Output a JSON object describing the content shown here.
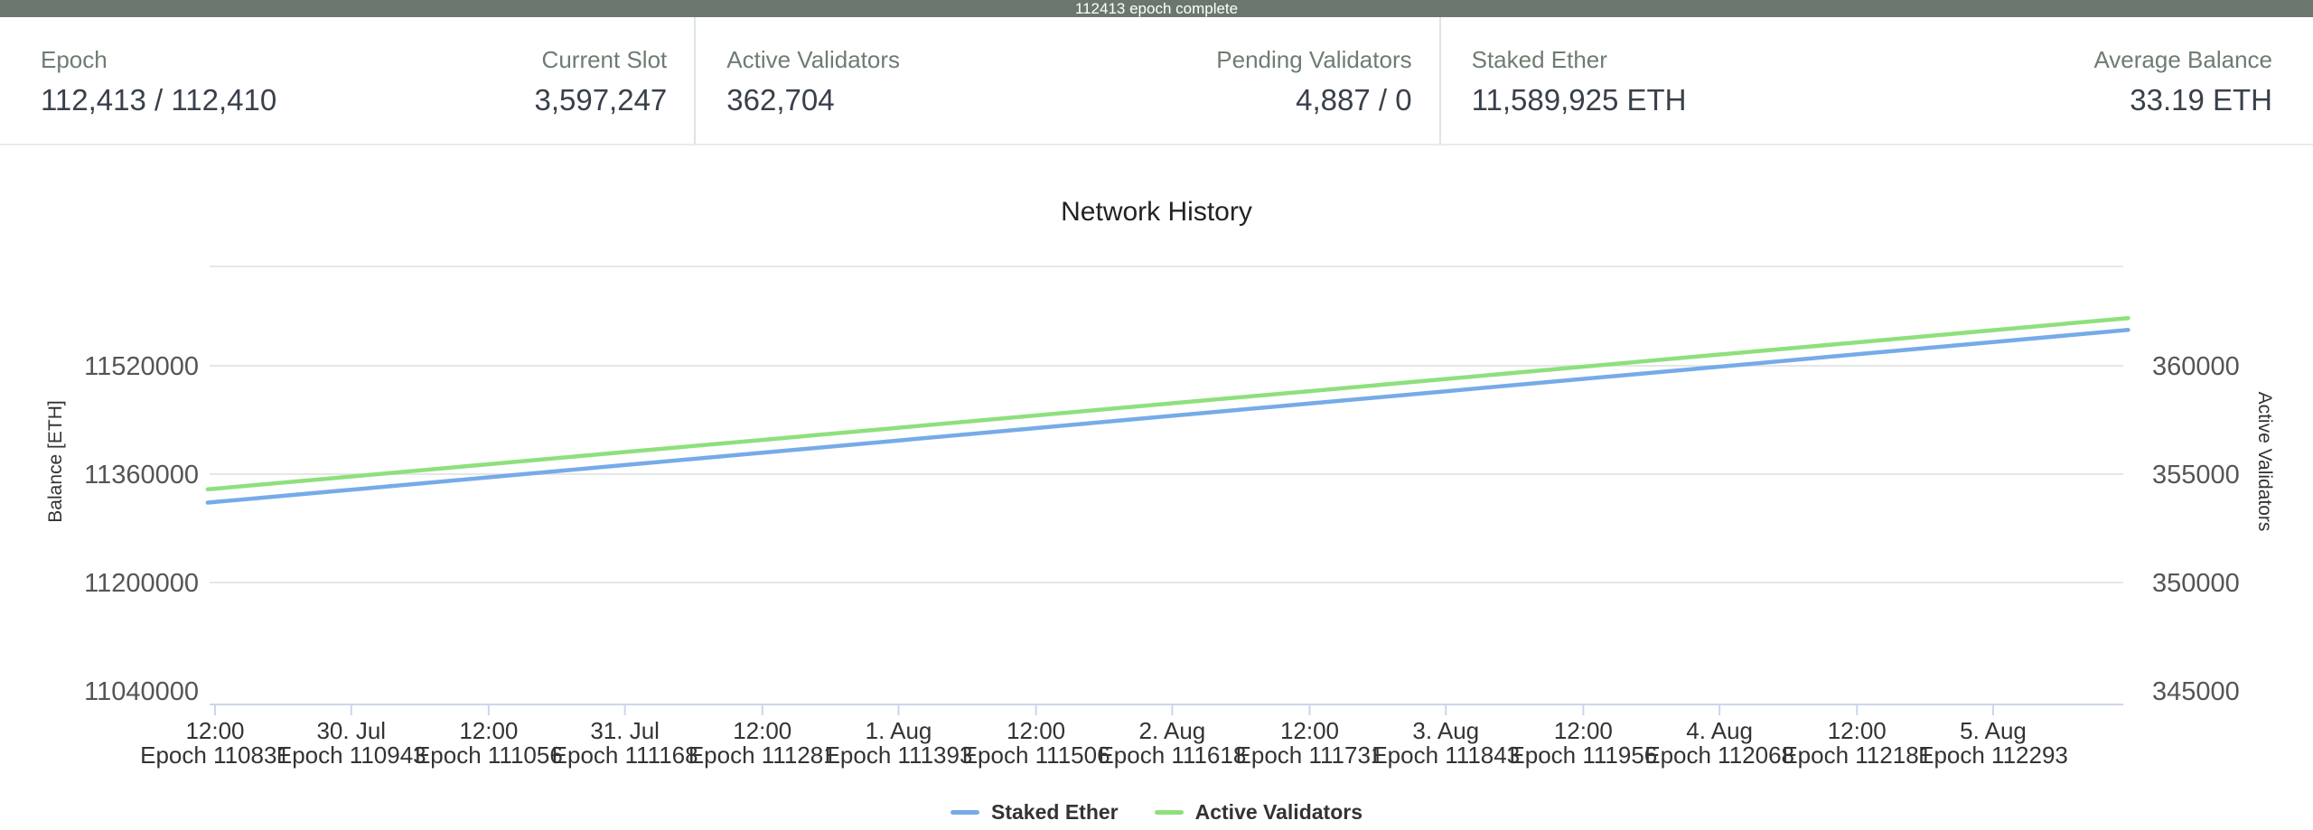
{
  "progress_banner": {
    "text": "112413 epoch complete"
  },
  "stats": {
    "groups": [
      {
        "items": [
          {
            "label": "Epoch",
            "value": "112,413 / 112,410"
          },
          {
            "label": "Current Slot",
            "value": "3,597,247"
          }
        ]
      },
      {
        "items": [
          {
            "label": "Active Validators",
            "value": "362,704"
          },
          {
            "label": "Pending Validators",
            "value": "4,887 / 0"
          }
        ]
      },
      {
        "items": [
          {
            "label": "Staked Ether",
            "value": "11,589,925 ETH"
          },
          {
            "label": "Average Balance",
            "value": "33.19 ETH"
          }
        ]
      }
    ]
  },
  "chart_data": {
    "type": "line",
    "title": "Network History",
    "left_axis": {
      "title": "Balance [ETH]",
      "ticks": [
        11040000,
        11200000,
        11360000,
        11520000
      ],
      "ylim": [
        11020000,
        11666667
      ]
    },
    "right_axis": {
      "title": "Active Validators",
      "ticks": [
        345000,
        350000,
        355000,
        360000
      ],
      "ylim": [
        344375,
        364583
      ]
    },
    "x_axis": {
      "epoch_prefix": "Epoch",
      "categories": [
        {
          "time": "12:00",
          "epoch": 110831
        },
        {
          "time": "30. Jul",
          "epoch": 110943
        },
        {
          "time": "12:00",
          "epoch": 111056
        },
        {
          "time": "31. Jul",
          "epoch": 111168
        },
        {
          "time": "12:00",
          "epoch": 111281
        },
        {
          "time": "1. Aug",
          "epoch": 111393
        },
        {
          "time": "12:00",
          "epoch": 111506
        },
        {
          "time": "2. Aug",
          "epoch": 111618
        },
        {
          "time": "12:00",
          "epoch": 111731
        },
        {
          "time": "3. Aug",
          "epoch": 111843
        },
        {
          "time": "12:00",
          "epoch": 111956
        },
        {
          "time": "4. Aug",
          "epoch": 112068
        },
        {
          "time": "12:00",
          "epoch": 112181
        },
        {
          "time": "5. Aug",
          "epoch": 112293
        }
      ]
    },
    "series": [
      {
        "name": "Staked Ether",
        "axis": "left",
        "color": "#76abe8",
        "points": [
          [
            110825,
            11318000
          ],
          [
            110831,
            11319000
          ],
          [
            110943,
            11337100
          ],
          [
            111056,
            11355300
          ],
          [
            111168,
            11373400
          ],
          [
            111281,
            11391600
          ],
          [
            111393,
            11409700
          ],
          [
            111506,
            11428000
          ],
          [
            111618,
            11446100
          ],
          [
            111731,
            11464300
          ],
          [
            111843,
            11482400
          ],
          [
            111956,
            11500700
          ],
          [
            112068,
            11518700
          ],
          [
            112181,
            11537000
          ],
          [
            112293,
            11555100
          ],
          [
            112404,
            11573000
          ]
        ]
      },
      {
        "name": "Active Validators",
        "axis": "right",
        "color": "#8ee07d",
        "points": [
          [
            110825,
            354300
          ],
          [
            110831,
            354330
          ],
          [
            110943,
            354890
          ],
          [
            111056,
            355460
          ],
          [
            111168,
            356020
          ],
          [
            111281,
            356580
          ],
          [
            111393,
            357140
          ],
          [
            111506,
            357710
          ],
          [
            111618,
            358270
          ],
          [
            111731,
            358830
          ],
          [
            111843,
            359390
          ],
          [
            111956,
            359960
          ],
          [
            112068,
            360520
          ],
          [
            112181,
            361080
          ],
          [
            112293,
            361640
          ],
          [
            112404,
            362200
          ]
        ]
      }
    ],
    "legend": [
      {
        "label": "Staked Ether",
        "color": "#76abe8"
      },
      {
        "label": "Active Validators",
        "color": "#8ee07d"
      }
    ],
    "grid": true,
    "legend_position": "bottom",
    "colors": {
      "grid": "#e6e6e6",
      "axis_line": "#ccd6eb",
      "tick_text": "#555555",
      "x_text": "#333333"
    }
  }
}
